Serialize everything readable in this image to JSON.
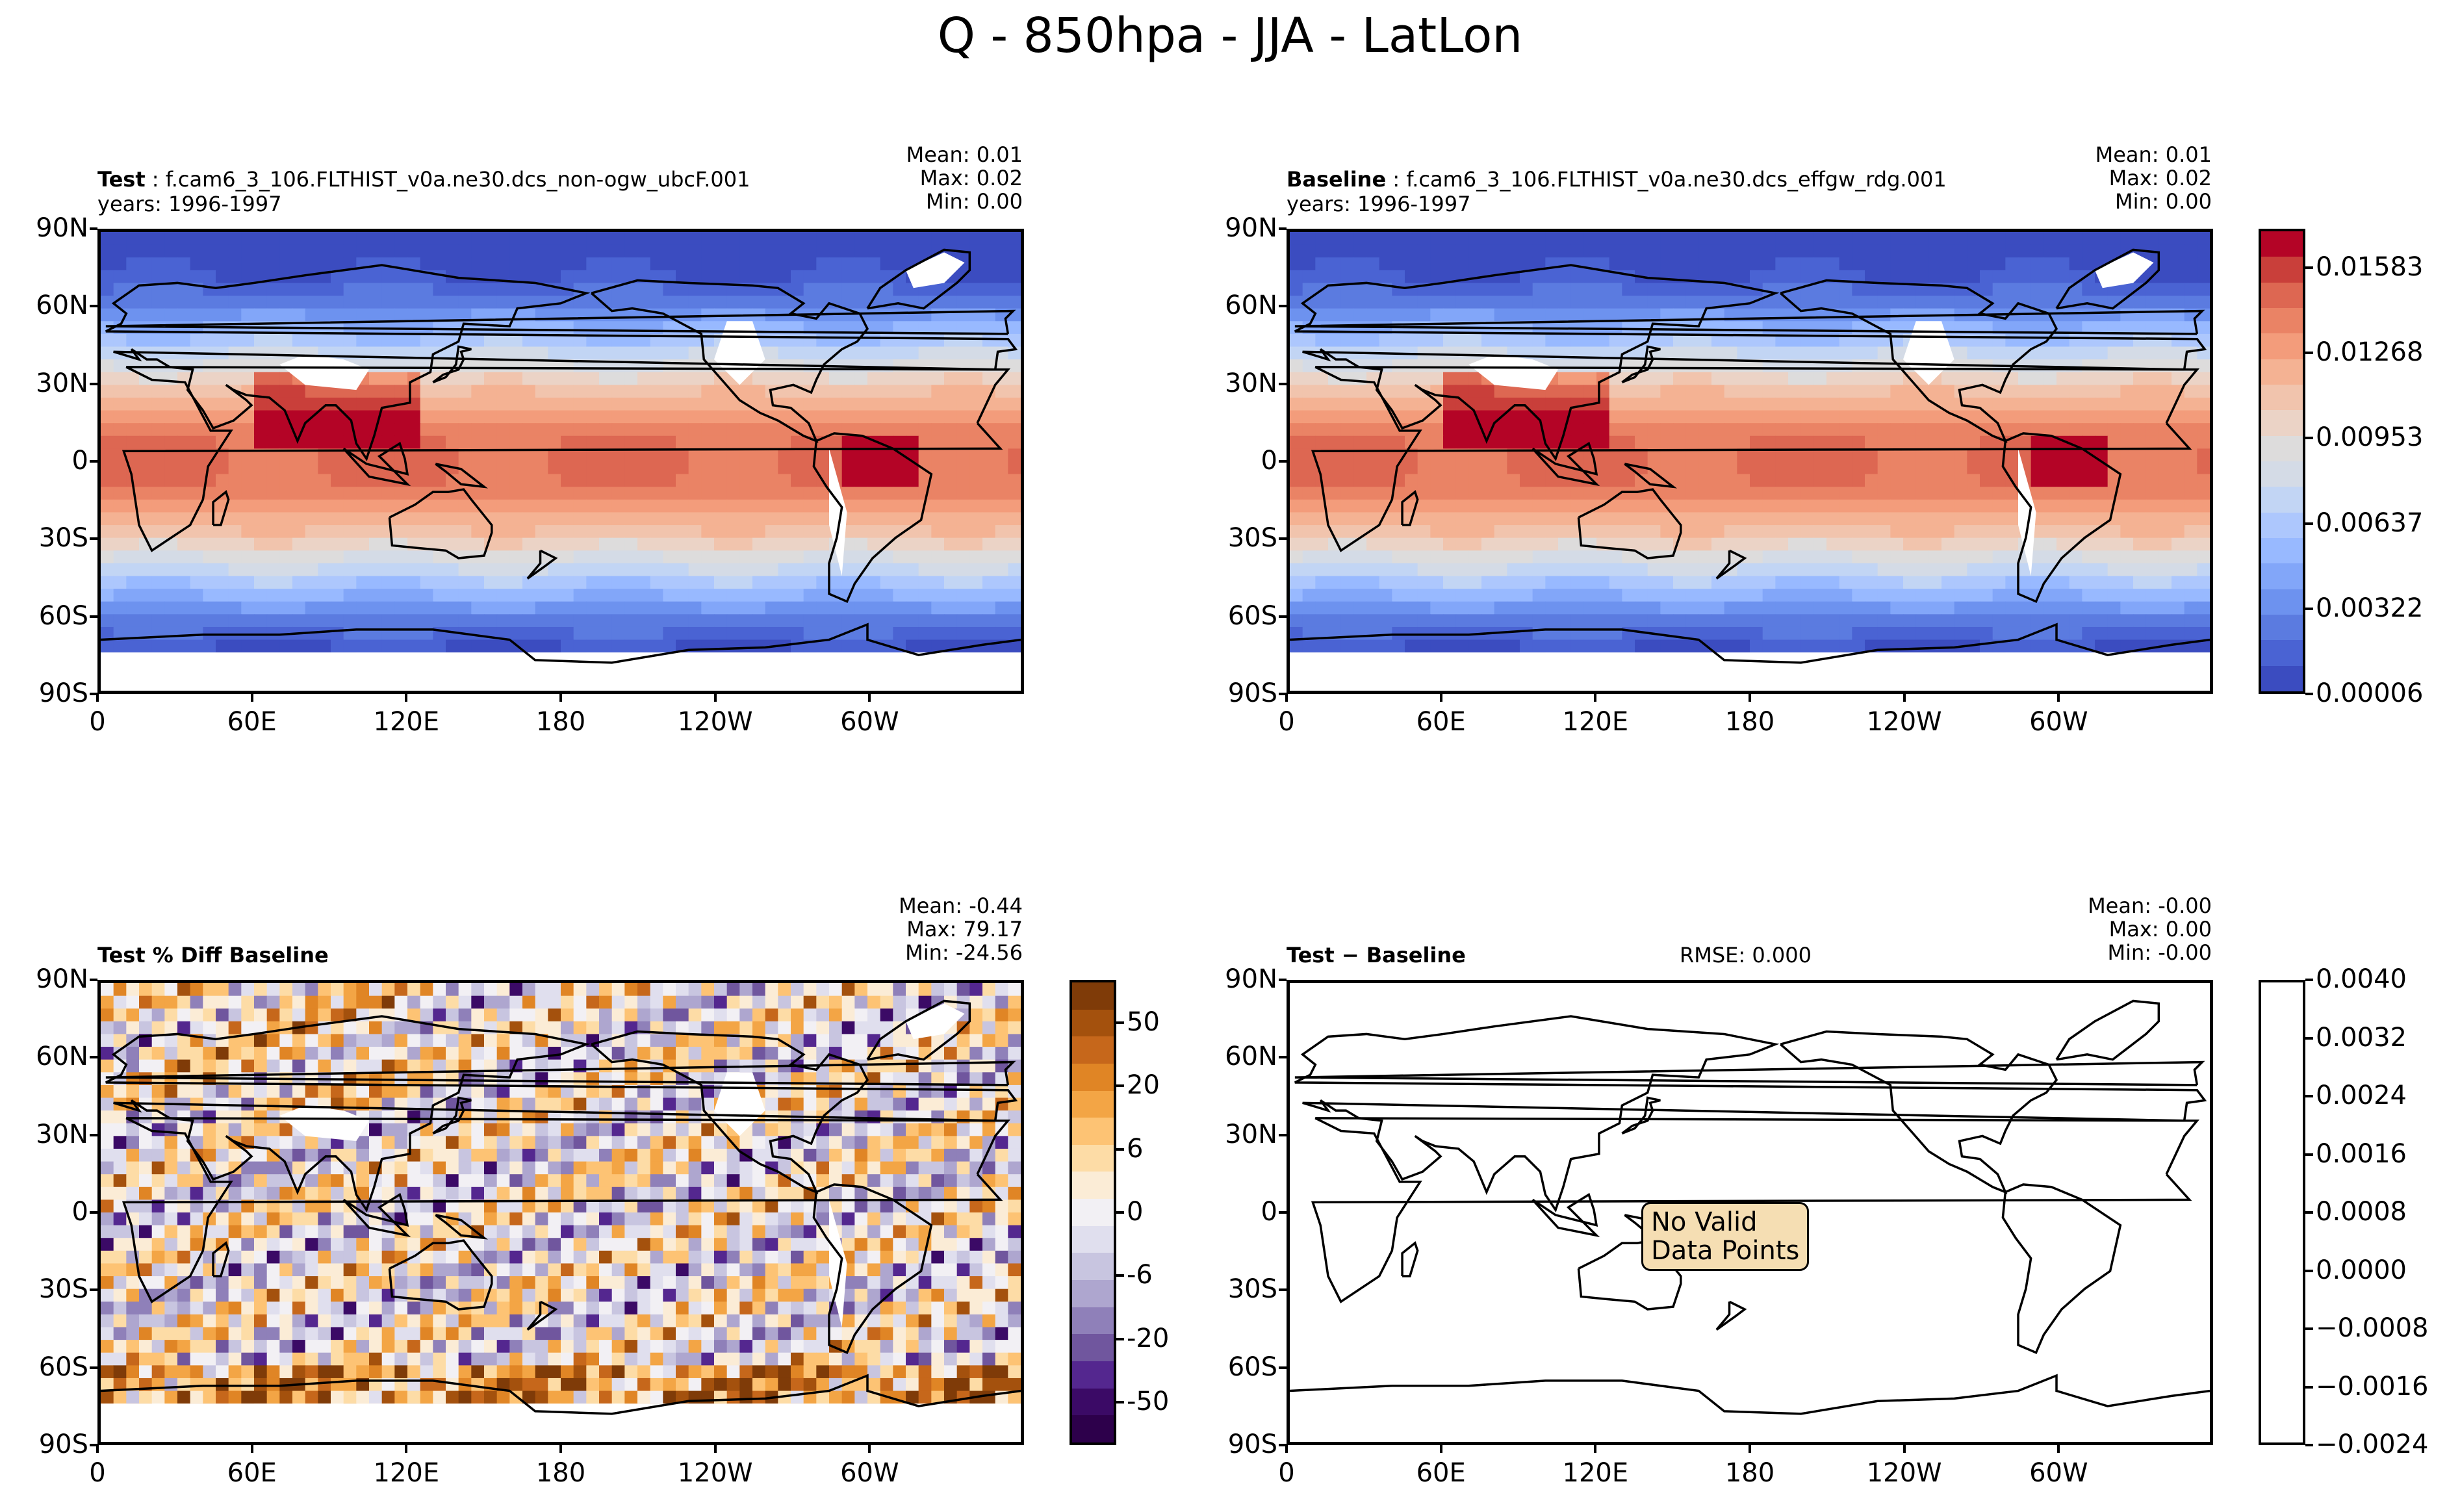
{
  "title": "Q - 850hpa - JJA - LatLon",
  "panels": [
    {
      "label_bold": "Test",
      "label_rest": " : f.cam6_3_106.FLTHIST_v0a.ne30.dcs_non-ogw_ubcF.001",
      "years": "years: 1996-1997",
      "stats": [
        "Mean:  0.01",
        "Max:  0.02",
        "Min:  0.00"
      ]
    },
    {
      "label_bold": "Baseline",
      "label_rest": " : f.cam6_3_106.FLTHIST_v0a.ne30.dcs_effgw_rdg.001",
      "years": "years: 1996-1997",
      "stats": [
        "Mean:  0.01",
        "Max:  0.02",
        "Min:  0.00"
      ]
    },
    {
      "label_bold": "Test % Diff Baseline",
      "stats": [
        "Mean: -0.44",
        "Max: 79.17",
        "Min: -24.56"
      ]
    },
    {
      "label_bold": "Test − Baseline",
      "rmse": "RMSE: 0.000",
      "stats": [
        "Mean: -0.00",
        "Max:  0.00",
        "Min: -0.00"
      ],
      "no_data": "No Valid Data Points"
    }
  ],
  "chart_data": {
    "type": "heatmap",
    "title": "Q - 850hpa - JJA - LatLon",
    "lat_ticks": [
      "90N",
      "60N",
      "30N",
      "0",
      "30S",
      "60S",
      "90S"
    ],
    "lon_ticks": [
      "0",
      "60E",
      "120E",
      "180",
      "120W",
      "60W"
    ],
    "colorbars": {
      "abs": {
        "ticks": [
          "0.01583",
          "0.01268",
          "0.00953",
          "0.00637",
          "0.00322",
          "0.00006"
        ],
        "colors": [
          "#3b4cc0",
          "#4a63d3",
          "#5b7be0",
          "#6d92ef",
          "#82a6f9",
          "#98b9ff",
          "#adc7fd",
          "#c2d5f4",
          "#d4dbe6",
          "#dddcdc",
          "#ebd3c6",
          "#f1c4ad",
          "#f4b293",
          "#f39c7b",
          "#ea8365",
          "#dd6752",
          "#c93f3a",
          "#b40426"
        ]
      },
      "pct": {
        "ticks": [
          "50",
          "20",
          "6",
          "0",
          "-6",
          "-20",
          "-50"
        ],
        "colors": [
          "#7f3b08",
          "#a4510d",
          "#c6671b",
          "#e08525",
          "#f3a545",
          "#fdc374",
          "#fddca6",
          "#fbecd6",
          "#f2f0f4",
          "#e0dfee",
          "#c8c5e0",
          "#aea6cf",
          "#8f80b9",
          "#70569e",
          "#54278f",
          "#3b0a66",
          "#2d004b"
        ]
      },
      "diff": {
        "ticks": [
          "0.0040",
          "0.0032",
          "0.0024",
          "0.0016",
          "0.0008",
          "0.0000",
          "−0.0008",
          "−0.0016",
          "−0.0024"
        ],
        "colors": [
          "#ffffff"
        ]
      }
    }
  }
}
